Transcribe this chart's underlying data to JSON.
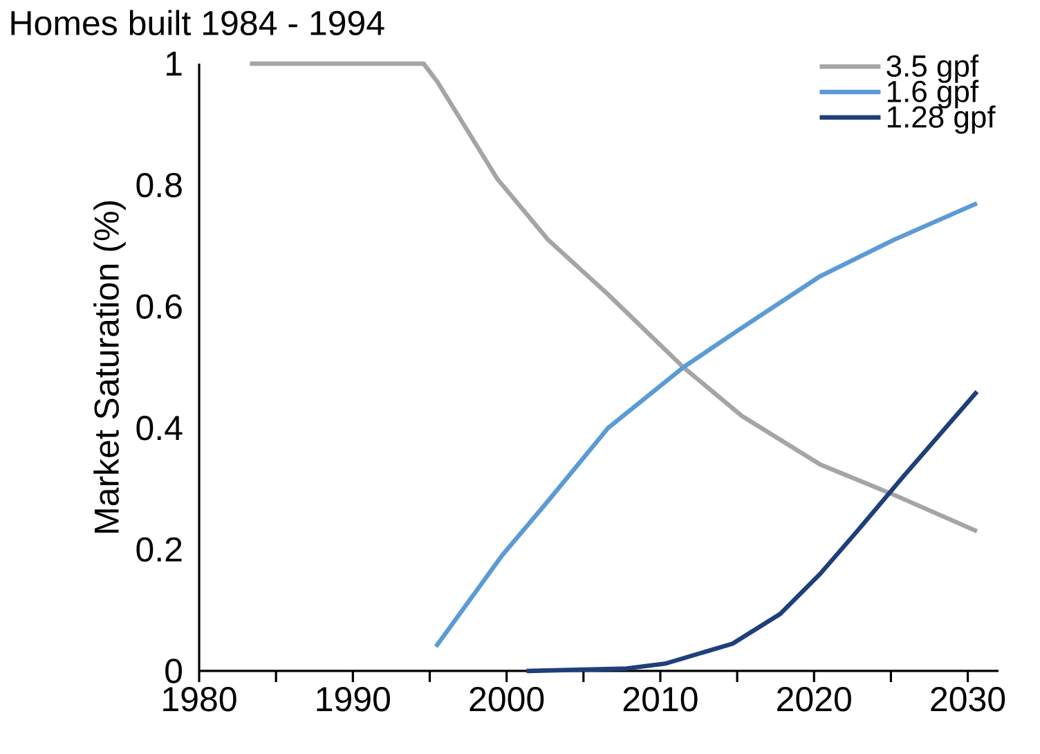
{
  "chart_data": {
    "type": "line",
    "title": "Homes built 1984 - 1994",
    "ylabel": "Market Saturation (%)",
    "xlim": [
      1980,
      2032
    ],
    "xticks": [
      1980,
      1990,
      2000,
      2010,
      2020,
      2030
    ],
    "ylim": [
      0,
      1
    ],
    "yticks": [
      0,
      0.2,
      0.4,
      0.6,
      0.8,
      1
    ],
    "legend": "top right",
    "grid": false,
    "marker": "none",
    "line_style": "solid",
    "series": [
      {
        "name": "3.5 gpf",
        "color": "#a5a5a5",
        "x": [
          1983.3,
          1994.6,
          1995.5,
          1999.4,
          2002.7,
          2006.6,
          2011.5,
          2015.3,
          2020.4,
          2025.2,
          2030.6
        ],
        "values": [
          1,
          1,
          0.97,
          0.81,
          0.71,
          0.62,
          0.5,
          0.42,
          0.34,
          0.29,
          0.23
        ]
      },
      {
        "name": "1.6 gpf",
        "color": "#5b9bd5",
        "x": [
          1995.4,
          1999.7,
          2002.7,
          2006.6,
          2011.5,
          2015,
          2020.4,
          2025.2,
          2030.6
        ],
        "values": [
          0.04,
          0.19,
          0.28,
          0.4,
          0.5,
          0.56,
          0.65,
          0.71,
          0.77
        ]
      },
      {
        "name": "1.28 gpf",
        "color": "#1f3f7a",
        "x": [
          2001.3,
          2007.8,
          2010.3,
          2014.7,
          2017.8,
          2020.4,
          2022.8,
          2025.8,
          2030.6
        ],
        "values": [
          0,
          0.004,
          0.012,
          0.045,
          0.094,
          0.16,
          0.23,
          0.32,
          0.46
        ]
      }
    ]
  }
}
